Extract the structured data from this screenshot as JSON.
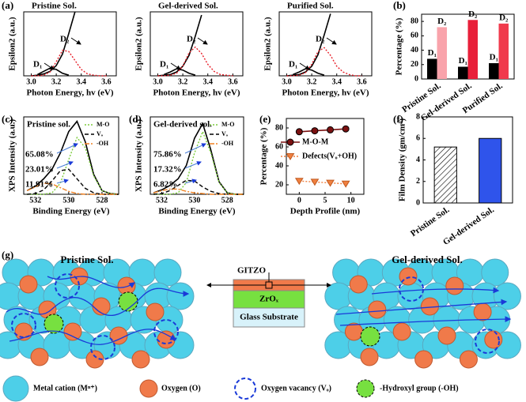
{
  "panel_labels": [
    "(a)",
    "(b)",
    "(c)",
    "(d)",
    "(e)",
    "(f)",
    "(g)"
  ],
  "chart_data": [
    {
      "type": "line",
      "title": "Pristine Sol.",
      "xlabel": "Photon Energy, hv (eV)",
      "ylabel": "Epsilon2 (a.u.)",
      "annotations": [
        "D₁",
        "D₂"
      ],
      "x": [
        3.0,
        3.05,
        3.1,
        3.15,
        3.2,
        3.25,
        3.3,
        3.35,
        3.4,
        3.45,
        3.5,
        3.55,
        3.6
      ],
      "xlim": [
        2.94,
        3.68
      ],
      "xticks": [
        {
          "value": 3,
          "label": "3.0"
        },
        3.2,
        3.4,
        3.6
      ],
      "ylim": [
        0,
        1
      ],
      "series": [
        {
          "color": "#000000",
          "style": "solid",
          "values": [
            0,
            0.01,
            0.03,
            0.07,
            0.16,
            0.34,
            0.66,
            1,
            null,
            null,
            null,
            null,
            null
          ]
        },
        {
          "color": "#000000",
          "style": "solid",
          "values": [
            null,
            0.02,
            0.07,
            0.12,
            0.1,
            0.04,
            0.01,
            null,
            null,
            null,
            null,
            null,
            null
          ]
        },
        {
          "color": "#e8202a",
          "style": "dotted",
          "values": [
            0,
            0,
            0.01,
            0.06,
            0.22,
            0.4,
            0.38,
            0.24,
            0.1,
            0.03,
            0.01,
            0,
            0
          ]
        }
      ]
    },
    {
      "type": "line",
      "title": "Gel-derived Sol.",
      "xlabel": "Photon Energy, hv (eV)",
      "ylabel": "Epsilon2 (a.u.)",
      "annotations": [
        "D₁",
        "D₂"
      ],
      "x": [
        3.0,
        3.05,
        3.1,
        3.15,
        3.2,
        3.25,
        3.3,
        3.35,
        3.4,
        3.45,
        3.5,
        3.55,
        3.6
      ],
      "xlim": [
        2.94,
        3.68
      ],
      "xticks": [
        {
          "value": 3,
          "label": "3.0"
        },
        3.2,
        3.4,
        3.6
      ],
      "ylim": [
        0,
        1
      ],
      "series": [
        {
          "color": "#000000",
          "style": "solid",
          "values": [
            0,
            0.01,
            0.02,
            0.06,
            0.15,
            0.32,
            0.62,
            0.95,
            null,
            null,
            null,
            null,
            null
          ]
        },
        {
          "color": "#000000",
          "style": "solid",
          "values": [
            null,
            0.02,
            0.06,
            0.11,
            0.09,
            0.04,
            0.01,
            null,
            null,
            null,
            null,
            null,
            null
          ]
        },
        {
          "color": "#e8202a",
          "style": "dotted",
          "values": [
            0,
            0,
            0.01,
            0.04,
            0.15,
            0.36,
            0.45,
            0.35,
            0.18,
            0.07,
            0.02,
            0.01,
            0
          ]
        }
      ]
    },
    {
      "type": "line",
      "title": "Purified Sol.",
      "xlabel": "Photon Energy, hv (eV)",
      "ylabel": "Epsilon2 (a.u.)",
      "annotations": [
        "D₁",
        "D₂"
      ],
      "x": [
        3.0,
        3.05,
        3.1,
        3.15,
        3.2,
        3.25,
        3.3,
        3.35,
        3.4,
        3.45,
        3.5,
        3.55,
        3.6
      ],
      "xlim": [
        2.94,
        3.68
      ],
      "xticks": [
        {
          "value": 3,
          "label": "3.0"
        },
        3.2,
        3.4,
        3.6
      ],
      "ylim": [
        0,
        1
      ],
      "series": [
        {
          "color": "#000000",
          "style": "solid",
          "values": [
            0,
            0.01,
            0.02,
            0.06,
            0.15,
            0.33,
            0.64,
            0.97,
            null,
            null,
            null,
            null,
            null
          ]
        },
        {
          "color": "#000000",
          "style": "solid",
          "values": [
            null,
            0.02,
            0.06,
            0.11,
            0.09,
            0.04,
            0.01,
            null,
            null,
            null,
            null,
            null,
            null
          ]
        },
        {
          "color": "#e8202a",
          "style": "dotted",
          "values": [
            0,
            0,
            0.01,
            0.05,
            0.18,
            0.38,
            0.44,
            0.32,
            0.15,
            0.06,
            0.02,
            0,
            0
          ]
        }
      ]
    },
    {
      "type": "bar",
      "ylabel": "Percentage (%)",
      "categories": [
        "Pristine Sol.",
        "Gel-derived Sol.",
        "Purified Sol."
      ],
      "ylim": [
        0,
        90
      ],
      "yticks": [
        0,
        20,
        40,
        60,
        80
      ],
      "series": [
        {
          "name": "D₁",
          "colors": [
            "#000000",
            "#000000",
            "#000000"
          ],
          "values": [
            28,
            17,
            22
          ]
        },
        {
          "name": "D₂",
          "colors": [
            "#f9a3ab",
            "#e8203a",
            "#f03a4c"
          ],
          "values": [
            72,
            82,
            77
          ]
        }
      ]
    },
    {
      "type": "line",
      "title": "Pristine sol.",
      "xlabel": "Binding Energy (eV)",
      "ylabel": "XPS Intensity (a.u.)",
      "annotations": [
        "65.08%",
        "23.01%",
        "11.91%"
      ],
      "x": [
        532.5,
        532,
        531.5,
        531,
        530.5,
        530,
        529.5,
        529,
        528.5,
        528,
        527.5,
        527
      ],
      "xlim": [
        532.7,
        527
      ],
      "xticks": [
        532,
        530,
        528
      ],
      "ylim": [
        0,
        1.05
      ],
      "series": [
        {
          "color": "#000000",
          "style": "solid",
          "values": [
            0.05,
            0.11,
            0.21,
            0.34,
            0.56,
            0.85,
            0.99,
            0.71,
            0.27,
            0.05,
            0.01,
            0
          ]
        },
        {
          "name": "M-O",
          "color": "#7ccc3c",
          "style": "dotted",
          "values": [
            0,
            0,
            0,
            0.02,
            0.15,
            0.47,
            0.77,
            0.63,
            0.25,
            0.05,
            0.01,
            0
          ]
        },
        {
          "name": "Vₒ",
          "color": "#000000",
          "style": "dashed",
          "values": [
            0,
            0.01,
            0.06,
            0.18,
            0.32,
            0.34,
            0.21,
            0.08,
            0.02,
            0,
            0,
            0
          ]
        },
        {
          "name": "-OH",
          "color": "#f08020",
          "style": "dashdot",
          "values": [
            0.05,
            0.1,
            0.15,
            0.14,
            0.09,
            0.04,
            0.01,
            0,
            0,
            0,
            0,
            0
          ]
        }
      ]
    },
    {
      "type": "line",
      "title": "Gel-derived sol.",
      "xlabel": "Binding Energy (eV)",
      "ylabel": "XPS Intensity (a.u.)",
      "annotations": [
        "75.86%",
        "17.32%",
        "6.82%"
      ],
      "x": [
        532.5,
        532,
        531.5,
        531,
        530.5,
        530,
        529.5,
        529,
        528.5,
        528,
        527.5,
        527
      ],
      "xlim": [
        532.7,
        527
      ],
      "xticks": [
        532,
        530,
        528
      ],
      "ylim": [
        0,
        1.05
      ],
      "series": [
        {
          "color": "#000000",
          "style": "solid",
          "values": [
            0.02,
            0.06,
            0.12,
            0.21,
            0.39,
            0.76,
            0.96,
            0.6,
            0.17,
            0.02,
            0,
            0
          ]
        },
        {
          "name": "M-O",
          "color": "#7ccc3c",
          "style": "dotted",
          "values": [
            0,
            0,
            0,
            0.02,
            0.16,
            0.56,
            0.85,
            0.56,
            0.16,
            0.02,
            0,
            0
          ]
        },
        {
          "name": "Vₒ",
          "color": "#000000",
          "style": "dashed",
          "values": [
            0,
            0.01,
            0.05,
            0.12,
            0.19,
            0.18,
            0.1,
            0.04,
            0.01,
            0,
            0,
            0
          ]
        },
        {
          "name": "-OH",
          "color": "#f08020",
          "style": "dashdot",
          "values": [
            0.02,
            0.05,
            0.07,
            0.07,
            0.04,
            0.02,
            0.01,
            0,
            0,
            0,
            0,
            0
          ]
        }
      ]
    },
    {
      "type": "line",
      "xlabel": "Depth Profile (nm)",
      "ylabel": "Percentage (%)",
      "x": [
        0,
        3,
        6,
        9
      ],
      "xlim": [
        -2.5,
        12.5
      ],
      "xticks": [
        0,
        5,
        10
      ],
      "ylim": [
        10,
        90
      ],
      "yticks": [
        20,
        40,
        60,
        80
      ],
      "series": [
        {
          "name": "M-O-M",
          "color": "#7a1010",
          "style": "solid",
          "marker": "circle",
          "values": [
            76,
            77,
            78,
            79
          ]
        },
        {
          "name": "Defects(Vₒ+OH)",
          "color": "#f08040",
          "style": "dotted",
          "marker": "triangle",
          "values": [
            24,
            23,
            22,
            21
          ]
        }
      ]
    },
    {
      "type": "bar",
      "ylabel": "Film Density (gm/cm³)",
      "categories": [
        "Pristine Sol.",
        "Gel-derived Sol."
      ],
      "ylim": [
        0,
        8
      ],
      "yticks": [
        0,
        2,
        4,
        6,
        8
      ],
      "series": [
        {
          "colors": [
            "#ffffff",
            "#2f54eb"
          ],
          "hatch": [
            true,
            false
          ],
          "values": [
            5.2,
            6.0
          ]
        }
      ]
    }
  ],
  "diagram": {
    "left_title": "Pristine Sol.",
    "right_title": "Gel-derived Sol.",
    "stack": {
      "top": "GITZO",
      "middle": "ZrOₓ",
      "bottom": "Glass Substrate"
    },
    "legend": [
      "Metal cation (Mⁿ⁺)",
      "Oxygen (O)",
      "Oxygen vacancy (Vₒ)",
      "-Hydroxyl group (-OH)"
    ]
  }
}
